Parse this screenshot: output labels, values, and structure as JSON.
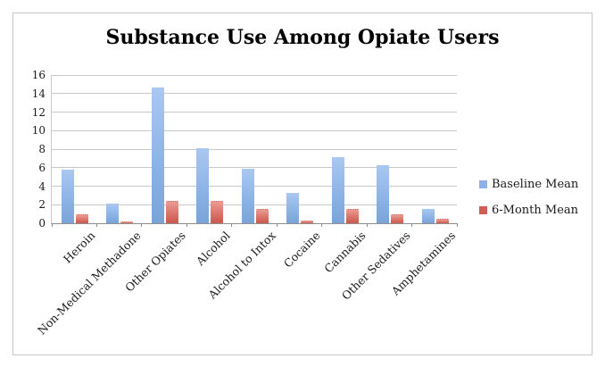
{
  "chart_data": {
    "type": "bar",
    "title": "Substance Use Among Opiate Users",
    "categories": [
      "Heroin",
      "Non-Medical Methadone",
      "Other Opiates",
      "Alcohol",
      "Alcohol to Intox",
      "Cocaine",
      "Cannabis",
      "Other Sedatives",
      "Amphetamines"
    ],
    "series": [
      {
        "name": "Baseline Mean",
        "color": "#8fb2e4",
        "values": [
          5.8,
          2.1,
          14.7,
          8.1,
          5.9,
          3.3,
          7.1,
          6.3,
          1.5
        ]
      },
      {
        "name": "6-Month Mean",
        "color": "#cd6159",
        "values": [
          0.9,
          0.1,
          2.3,
          2.3,
          1.4,
          0.2,
          1.4,
          0.9,
          0.4
        ]
      }
    ],
    "xlabel": "",
    "ylabel": "",
    "ylim": [
      0,
      16
    ],
    "yticks": [
      0,
      2,
      4,
      6,
      8,
      10,
      12,
      14,
      16
    ],
    "grid": true,
    "legend_position": "right",
    "colors": {
      "baseline_bar": "#8fb2e4",
      "six_month_bar": "#cd6159",
      "gridline": "#c9c9c9",
      "frame_border": "#c6c6c6",
      "axis_line": "#8f8f8f"
    }
  }
}
